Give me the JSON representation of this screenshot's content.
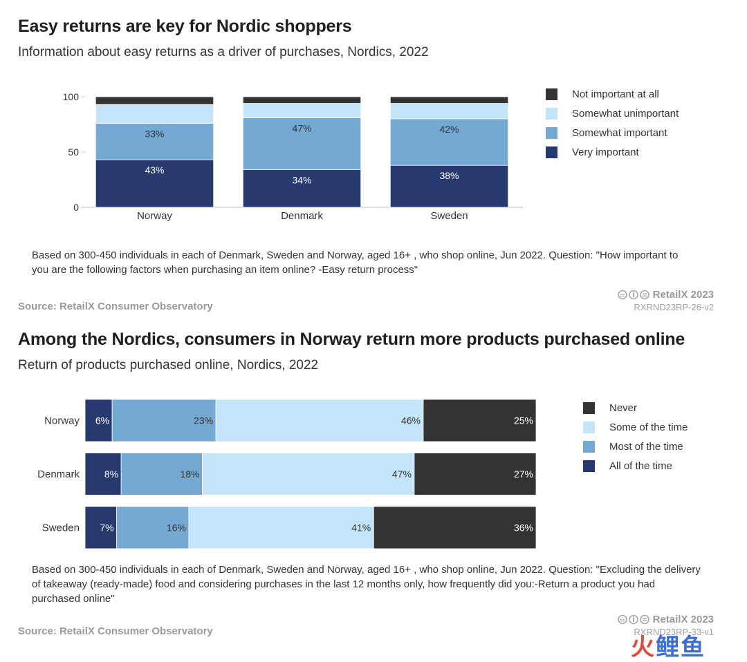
{
  "chart_data": [
    {
      "type": "bar",
      "orientation": "vertical",
      "stacked": true,
      "title": "Easy returns are key for Nordic shoppers",
      "subtitle": "Information about easy returns as a driver of purchases, Nordics, 2022",
      "categories": [
        "Norway",
        "Denmark",
        "Sweden"
      ],
      "ylim": [
        0,
        100
      ],
      "yticks": [
        "0",
        "50",
        "100"
      ],
      "grid": false,
      "legend_position": "right",
      "series": [
        {
          "name": "Very important",
          "color": "#263a70",
          "values": [
            43,
            34,
            38
          ],
          "labels": [
            "43%",
            "34%",
            "38%"
          ]
        },
        {
          "name": "Somewhat important",
          "color": "#73a9d2",
          "values": [
            33,
            47,
            42
          ],
          "labels": [
            "33%",
            "47%",
            "42%"
          ]
        },
        {
          "name": "Somewhat unimportant",
          "color": "#c3e5f7",
          "values": [
            17,
            13,
            14
          ],
          "labels": [
            "",
            "",
            ""
          ]
        },
        {
          "name": "Not important at all",
          "color": "#333333",
          "values": [
            7,
            6,
            6
          ],
          "labels": [
            "",
            "",
            ""
          ]
        }
      ],
      "note": "Based on 300-450 individuals in each of Denmark, Sweden and Norway, aged 16+ , who shop online, Jun 2022. Question: \"How important to you are the following factors when purchasing an item online? -Easy return process\"",
      "source": "Source: RetailX Consumer Observatory",
      "brand": "RetailX 2023",
      "code": "RXRND23RP-26-v2"
    },
    {
      "type": "bar",
      "orientation": "horizontal",
      "stacked": true,
      "title": "Among the Nordics, consumers in Norway return more products purchased online",
      "subtitle": "Return of products purchased online, Nordics, 2022",
      "categories": [
        "Norway",
        "Denmark",
        "Sweden"
      ],
      "xlim": [
        0,
        100
      ],
      "grid": false,
      "legend_position": "right",
      "series": [
        {
          "name": "All of the time",
          "color": "#263a70",
          "values": [
            6,
            8,
            7
          ],
          "labels": [
            "6%",
            "8%",
            "7%"
          ]
        },
        {
          "name": "Most of the time",
          "color": "#73a9d2",
          "values": [
            23,
            18,
            16
          ],
          "labels": [
            "23%",
            "18%",
            "16%"
          ]
        },
        {
          "name": "Some of the time",
          "color": "#c3e5f7",
          "values": [
            46,
            47,
            41
          ],
          "labels": [
            "46%",
            "47%",
            "41%"
          ]
        },
        {
          "name": "Never",
          "color": "#333333",
          "values": [
            25,
            27,
            36
          ],
          "labels": [
            "25%",
            "27%",
            "36%"
          ]
        }
      ],
      "note": "Based on 300-450 individuals in each of Denmark, Sweden and Norway, aged 16+ , who shop online, Jun 2022. Question: \"Excluding the delivery of takeaway (ready-made) food and considering purchases in the last 12 months only, how frequently did you:-Return a product you had purchased online\"",
      "source": "Source: RetailX Consumer Observatory",
      "brand": "RetailX 2023",
      "code": "RXRND23RP-33-v1"
    }
  ],
  "license_icons": "cc-by-nd-icons",
  "watermark": "火鲤鱼"
}
